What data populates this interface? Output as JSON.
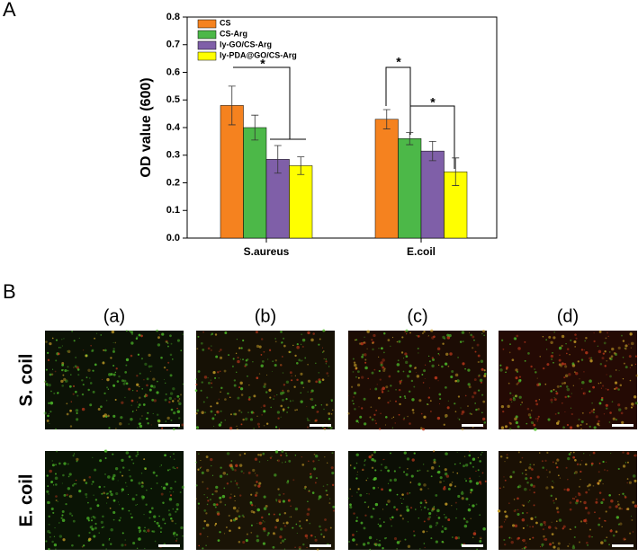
{
  "panel_labels": [
    "A",
    "B"
  ],
  "chart_data": {
    "type": "bar",
    "ylabel": "OD value (600)",
    "categories": [
      "S.aureus",
      "E.coil"
    ],
    "series": [
      {
        "name": "CS",
        "color": "#f5821f",
        "values": [
          0.48,
          0.43
        ],
        "errors": [
          0.07,
          0.035
        ]
      },
      {
        "name": "CS-Arg",
        "color": "#4cb848",
        "values": [
          0.4,
          0.36
        ],
        "errors": [
          0.045,
          0.022
        ]
      },
      {
        "name": "ly-GO/CS-Arg",
        "color": "#7f5fa8",
        "values": [
          0.285,
          0.315
        ],
        "errors": [
          0.05,
          0.035
        ]
      },
      {
        "name": "ly-PDA@GO/CS-Arg",
        "color": "#ffff00",
        "values": [
          0.262,
          0.24
        ],
        "errors": [
          0.032,
          0.05
        ]
      }
    ],
    "ylim": [
      0,
      0.8
    ],
    "yticks": [
      {
        "value": 0,
        "label": "0.0"
      },
      0.1,
      0.2,
      0.3,
      0.4,
      0.5,
      0.6,
      0.7,
      0.8
    ],
    "annotations": [
      "*",
      "*",
      "*"
    ],
    "legend": "upper left"
  },
  "panel_b": {
    "columns": [
      "(a)",
      "(b)",
      "(c)",
      "(d)"
    ],
    "rows": [
      "S. coil",
      "E. coil"
    ]
  }
}
